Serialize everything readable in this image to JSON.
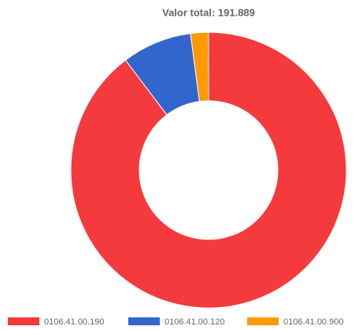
{
  "chart_data": {
    "type": "donut",
    "title": "Valor total: 191.889",
    "categories": [
      "0106.41.00.190",
      "0106.41.00.120",
      "0106.41.00.900"
    ],
    "values": [
      89.7,
      8.2,
      2.1
    ],
    "colors": [
      "#f43a3c",
      "#3366cc",
      "#ff9900"
    ],
    "legend": "bottom"
  }
}
